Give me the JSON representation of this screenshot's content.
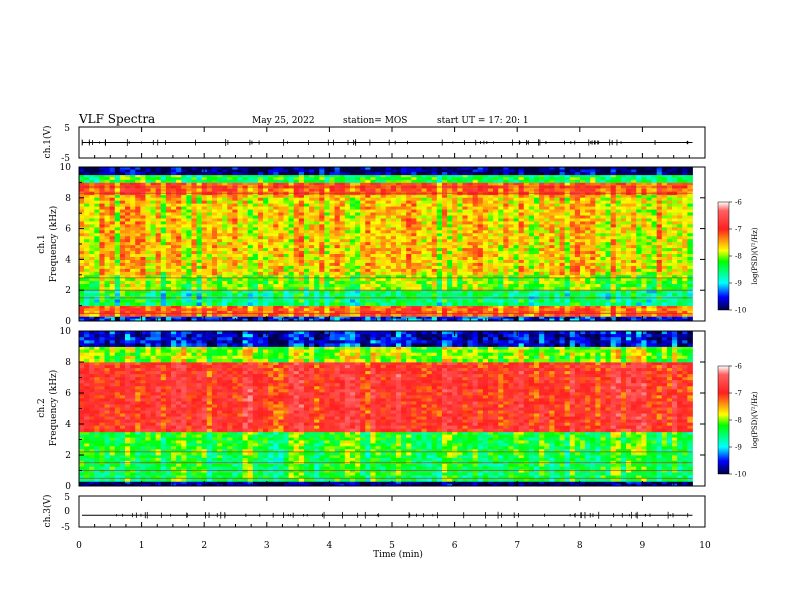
{
  "header": {
    "title": "VLF Spectra",
    "date": "May 25, 2022",
    "station": "station= MOS",
    "start": "start  UT  =   17: 20: 1"
  },
  "chart_data": [
    {
      "type": "line",
      "panel": "ch1-waveform",
      "ylabel": "ch.1(V)",
      "ylim": [
        -5,
        5
      ],
      "yticks": [
        "5",
        "-5"
      ],
      "baseline_v": 0,
      "color": "#000000"
    },
    {
      "type": "heatmap",
      "panel": "ch1-spectrogram",
      "ylabel": "ch.1\nFrequency (kHz)",
      "ylim": [
        0,
        10
      ],
      "yticks": [
        "0",
        "2",
        "4",
        "6",
        "8",
        "10"
      ],
      "x_end_min": 9.8,
      "colorbar": {
        "label": "log(PSD)(V²/Hz)",
        "range": [
          -10,
          -6
        ],
        "ticks": [
          "-6",
          "-7",
          "-8",
          "-9",
          "-10"
        ]
      },
      "bands": [
        {
          "from_khz": 0,
          "to_khz": 0.3,
          "log_psd": -9.5
        },
        {
          "from_khz": 0.3,
          "to_khz": 1.0,
          "log_psd": -7.3
        },
        {
          "from_khz": 1.0,
          "to_khz": 2.0,
          "log_psd": -8.6
        },
        {
          "from_khz": 2.0,
          "to_khz": 3.0,
          "log_psd": -8.1
        },
        {
          "from_khz": 3.0,
          "to_khz": 8.2,
          "log_psd": -7.7
        },
        {
          "from_khz": 8.2,
          "to_khz": 9.0,
          "log_psd": -7.2
        },
        {
          "from_khz": 9.0,
          "to_khz": 9.5,
          "log_psd": -8.4
        },
        {
          "from_khz": 9.5,
          "to_khz": 10.0,
          "log_psd": -9.9
        }
      ],
      "lines_khz": [
        8.7,
        8.3,
        2.8,
        2.0,
        1.5,
        0.5
      ]
    },
    {
      "type": "heatmap",
      "panel": "ch2-spectrogram",
      "ylabel": "ch.2\nFrequency (kHz)",
      "ylim": [
        0,
        10
      ],
      "yticks": [
        "0",
        "2",
        "4",
        "6",
        "8",
        "10"
      ],
      "x_end_min": 9.8,
      "colorbar": {
        "label": "log(PSD)(V²/Hz)",
        "range": [
          -10,
          -6
        ],
        "ticks": [
          "-6",
          "-7",
          "-8",
          "-9",
          "-10"
        ]
      },
      "bands": [
        {
          "from_khz": 0,
          "to_khz": 0.3,
          "log_psd": -9.9
        },
        {
          "from_khz": 0.3,
          "to_khz": 2.0,
          "log_psd": -8.4
        },
        {
          "from_khz": 2.0,
          "to_khz": 3.5,
          "log_psd": -8.3
        },
        {
          "from_khz": 3.5,
          "to_khz": 8.0,
          "log_psd": -6.9
        },
        {
          "from_khz": 8.0,
          "to_khz": 9.0,
          "log_psd": -8.0
        },
        {
          "from_khz": 9.0,
          "to_khz": 10.0,
          "log_psd": -9.6
        }
      ],
      "lines_khz": [
        2.2,
        1.5,
        1.0,
        0.5
      ]
    },
    {
      "type": "line",
      "panel": "ch3-waveform",
      "ylabel": "ch.3(V)",
      "ylim": [
        -5,
        5
      ],
      "yticks": [
        "5",
        "0",
        "-5"
      ],
      "baseline_v": -1.2,
      "color": "#000000"
    }
  ],
  "xaxis": {
    "label": "Time  (min)",
    "xlim": [
      0,
      10
    ],
    "ticks": [
      "0",
      "1",
      "2",
      "3",
      "4",
      "5",
      "6",
      "7",
      "8",
      "9",
      "10"
    ]
  }
}
